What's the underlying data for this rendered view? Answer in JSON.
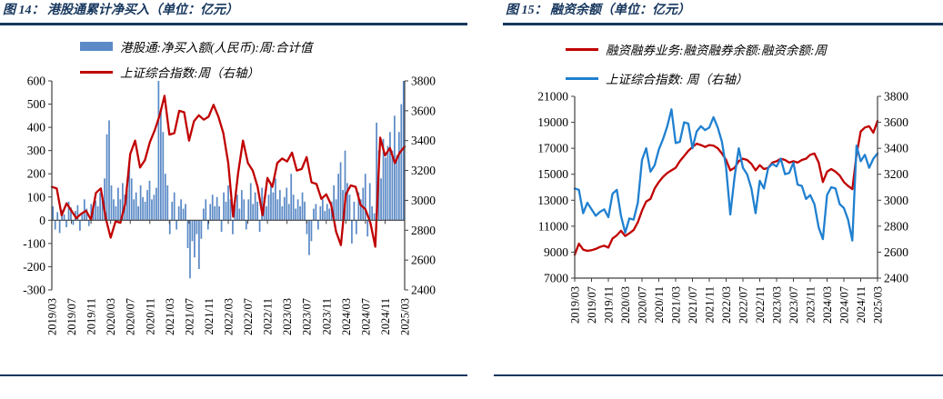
{
  "colors": {
    "navy_accent": "#17375E",
    "red_line": "#C00000",
    "bar_blue": "#5B8AC6",
    "blue_line": "#2080D0",
    "axis_gray": "#404040"
  },
  "figures": [
    {
      "caption": "图 14： 港股通累计净买入（单位：亿元）"
    },
    {
      "caption": "图 15： 融资余额（单位：亿元）"
    }
  ],
  "shared": {
    "x_ticks": [
      "2019/03",
      "2019/07",
      "2019/11",
      "2020/03",
      "2020/07",
      "2020/11",
      "2021/03",
      "2021/07",
      "2021/11",
      "2022/03",
      "2022/07",
      "2022/11",
      "2023/03",
      "2023/07",
      "2023/11",
      "2024/03",
      "2024/07",
      "2024/11",
      "2025/03"
    ],
    "sse": [
      3090,
      3080,
      2900,
      2980,
      2930,
      2880,
      2910,
      2930,
      2870,
      3050,
      3080,
      2880,
      2750,
      2860,
      2850,
      2980,
      3310,
      3400,
      3220,
      3270,
      3390,
      3470,
      3570,
      3700,
      3440,
      3450,
      3600,
      3590,
      3400,
      3530,
      3570,
      3540,
      3560,
      3640,
      3560,
      3450,
      3250,
      2890,
      3180,
      3400,
      3250,
      3200,
      3090,
      2900,
      3150,
      3090,
      3250,
      3280,
      3260,
      3320,
      3200,
      3210,
      3290,
      3120,
      3110,
      3010,
      3040,
      2970,
      2790,
      2700,
      3040,
      3100,
      3090,
      2970,
      2940,
      2850,
      2690,
      3420,
      3300,
      3350,
      3250,
      3320,
      3360
    ]
  },
  "chart_data": [
    {
      "type": "bar",
      "title": "港股通累计净买入（单位：亿元）",
      "x_start": "2019/03",
      "x_end": "2025/03",
      "x_ticks_ref": "x_ticks",
      "x_axis_position": "zero",
      "grid": false,
      "legend_position": "top-left-inside",
      "left_axis": {
        "min": -300,
        "max": 600,
        "tick_step": 100
      },
      "right_axis": {
        "min": 2400,
        "max": 3800,
        "tick_step": 200
      },
      "series": [
        {
          "name": "港股通:净买入额(人民币):周:合计值",
          "type": "bar",
          "axis": "left",
          "color": "#5B8AC6",
          "x_sampling": "biweekly",
          "values": [
            60,
            -40,
            35,
            -55,
            45,
            25,
            -30,
            80,
            55,
            -20,
            40,
            65,
            -45,
            30,
            90,
            50,
            -25,
            70,
            45,
            85,
            60,
            120,
            100,
            180,
            370,
            430,
            150,
            90,
            60,
            140,
            90,
            160,
            110,
            130,
            250,
            180,
            90,
            120,
            60,
            150,
            100,
            80,
            130,
            170,
            90,
            110,
            140,
            600,
            480,
            380,
            200,
            150,
            -60,
            80,
            120,
            -40,
            60,
            90,
            50,
            70,
            -120,
            -250,
            -90,
            -160,
            -60,
            -210,
            -80,
            50,
            90,
            -40,
            70,
            110,
            60,
            100,
            60,
            -50,
            120,
            80,
            150,
            90,
            -60,
            70,
            110,
            50,
            130,
            90,
            -40,
            90,
            160,
            70,
            120,
            80,
            -50,
            140,
            100,
            60,
            110,
            150,
            120,
            180,
            90,
            130,
            60,
            100,
            140,
            70,
            200,
            110,
            50,
            90,
            60,
            120,
            80,
            -60,
            -150,
            -90,
            50,
            70,
            -40,
            60,
            90,
            40,
            70,
            50,
            80,
            150,
            90,
            200,
            250,
            130,
            300,
            160,
            110,
            -100,
            80,
            -60,
            120,
            90,
            140,
            200,
            -70,
            160,
            60,
            30,
            420,
            300,
            180,
            350,
            270,
            320,
            380,
            300,
            450,
            280,
            380,
            500,
            600
          ]
        },
        {
          "name": "上证综合指数:周（右轴）",
          "type": "line",
          "axis": "right",
          "color": "#C00000",
          "x_sampling": "monthly",
          "values_ref": "sse"
        }
      ]
    },
    {
      "type": "line",
      "title": "融资余额（单位：亿元）",
      "x_start": "2019/03",
      "x_end": "2025/03",
      "x_ticks_ref": "x_ticks",
      "x_axis_position": "bottom",
      "grid": false,
      "legend_position": "top-center-inside",
      "left_axis": {
        "min": 7000,
        "max": 21000,
        "tick_step": 2000
      },
      "right_axis": {
        "min": 2400,
        "max": 3800,
        "tick_step": 200
      },
      "series": [
        {
          "name": "融资融券业务:融资融券余额:融资余额:周",
          "type": "line",
          "axis": "left",
          "color": "#C00000",
          "x_sampling": "monthly",
          "values": [
            8800,
            9650,
            9200,
            9100,
            9150,
            9250,
            9400,
            9500,
            9350,
            10050,
            10300,
            10650,
            10250,
            10450,
            10700,
            11300,
            12200,
            12900,
            13100,
            13900,
            14400,
            14800,
            15100,
            15300,
            15500,
            16000,
            16400,
            16800,
            17100,
            17350,
            17250,
            17100,
            17250,
            17200,
            17000,
            16600,
            16100,
            15300,
            15500,
            16000,
            16200,
            16100,
            15800,
            15300,
            15700,
            15400,
            15500,
            15900,
            16000,
            16200,
            16100,
            15900,
            16000,
            15900,
            16100,
            16200,
            16500,
            16600,
            15900,
            14400,
            15200,
            15400,
            15200,
            14900,
            14400,
            14100,
            13850,
            16500,
            18300,
            18600,
            18700,
            18200,
            19100
          ]
        },
        {
          "name": "上证综合指数: 周（右轴）",
          "type": "line",
          "axis": "right",
          "color": "#2080D0",
          "x_sampling": "monthly",
          "values_ref": "sse"
        }
      ]
    }
  ]
}
